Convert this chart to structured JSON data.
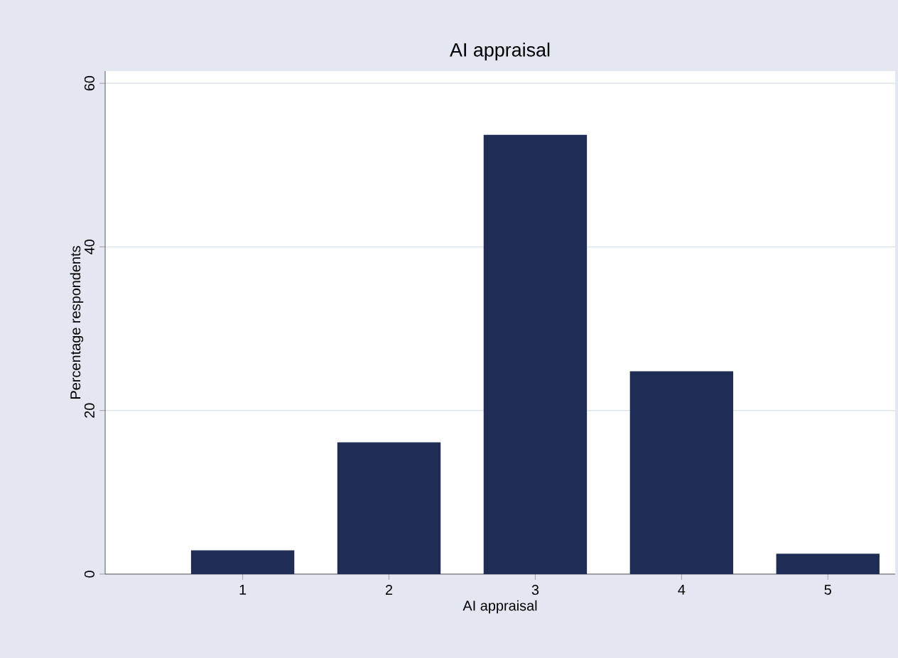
{
  "chart_data": {
    "type": "bar",
    "title": "AI appraisal",
    "xlabel": "AI appraisal",
    "ylabel": "Percentage respondents",
    "categories": [
      "1",
      "2",
      "3",
      "4",
      "5"
    ],
    "values": [
      2.9,
      16.1,
      53.7,
      24.8,
      2.5
    ],
    "color": "#1f2d54",
    "ylim": [
      0,
      61.5
    ],
    "yticks": [
      0,
      20,
      40,
      60
    ],
    "grid": "y"
  }
}
